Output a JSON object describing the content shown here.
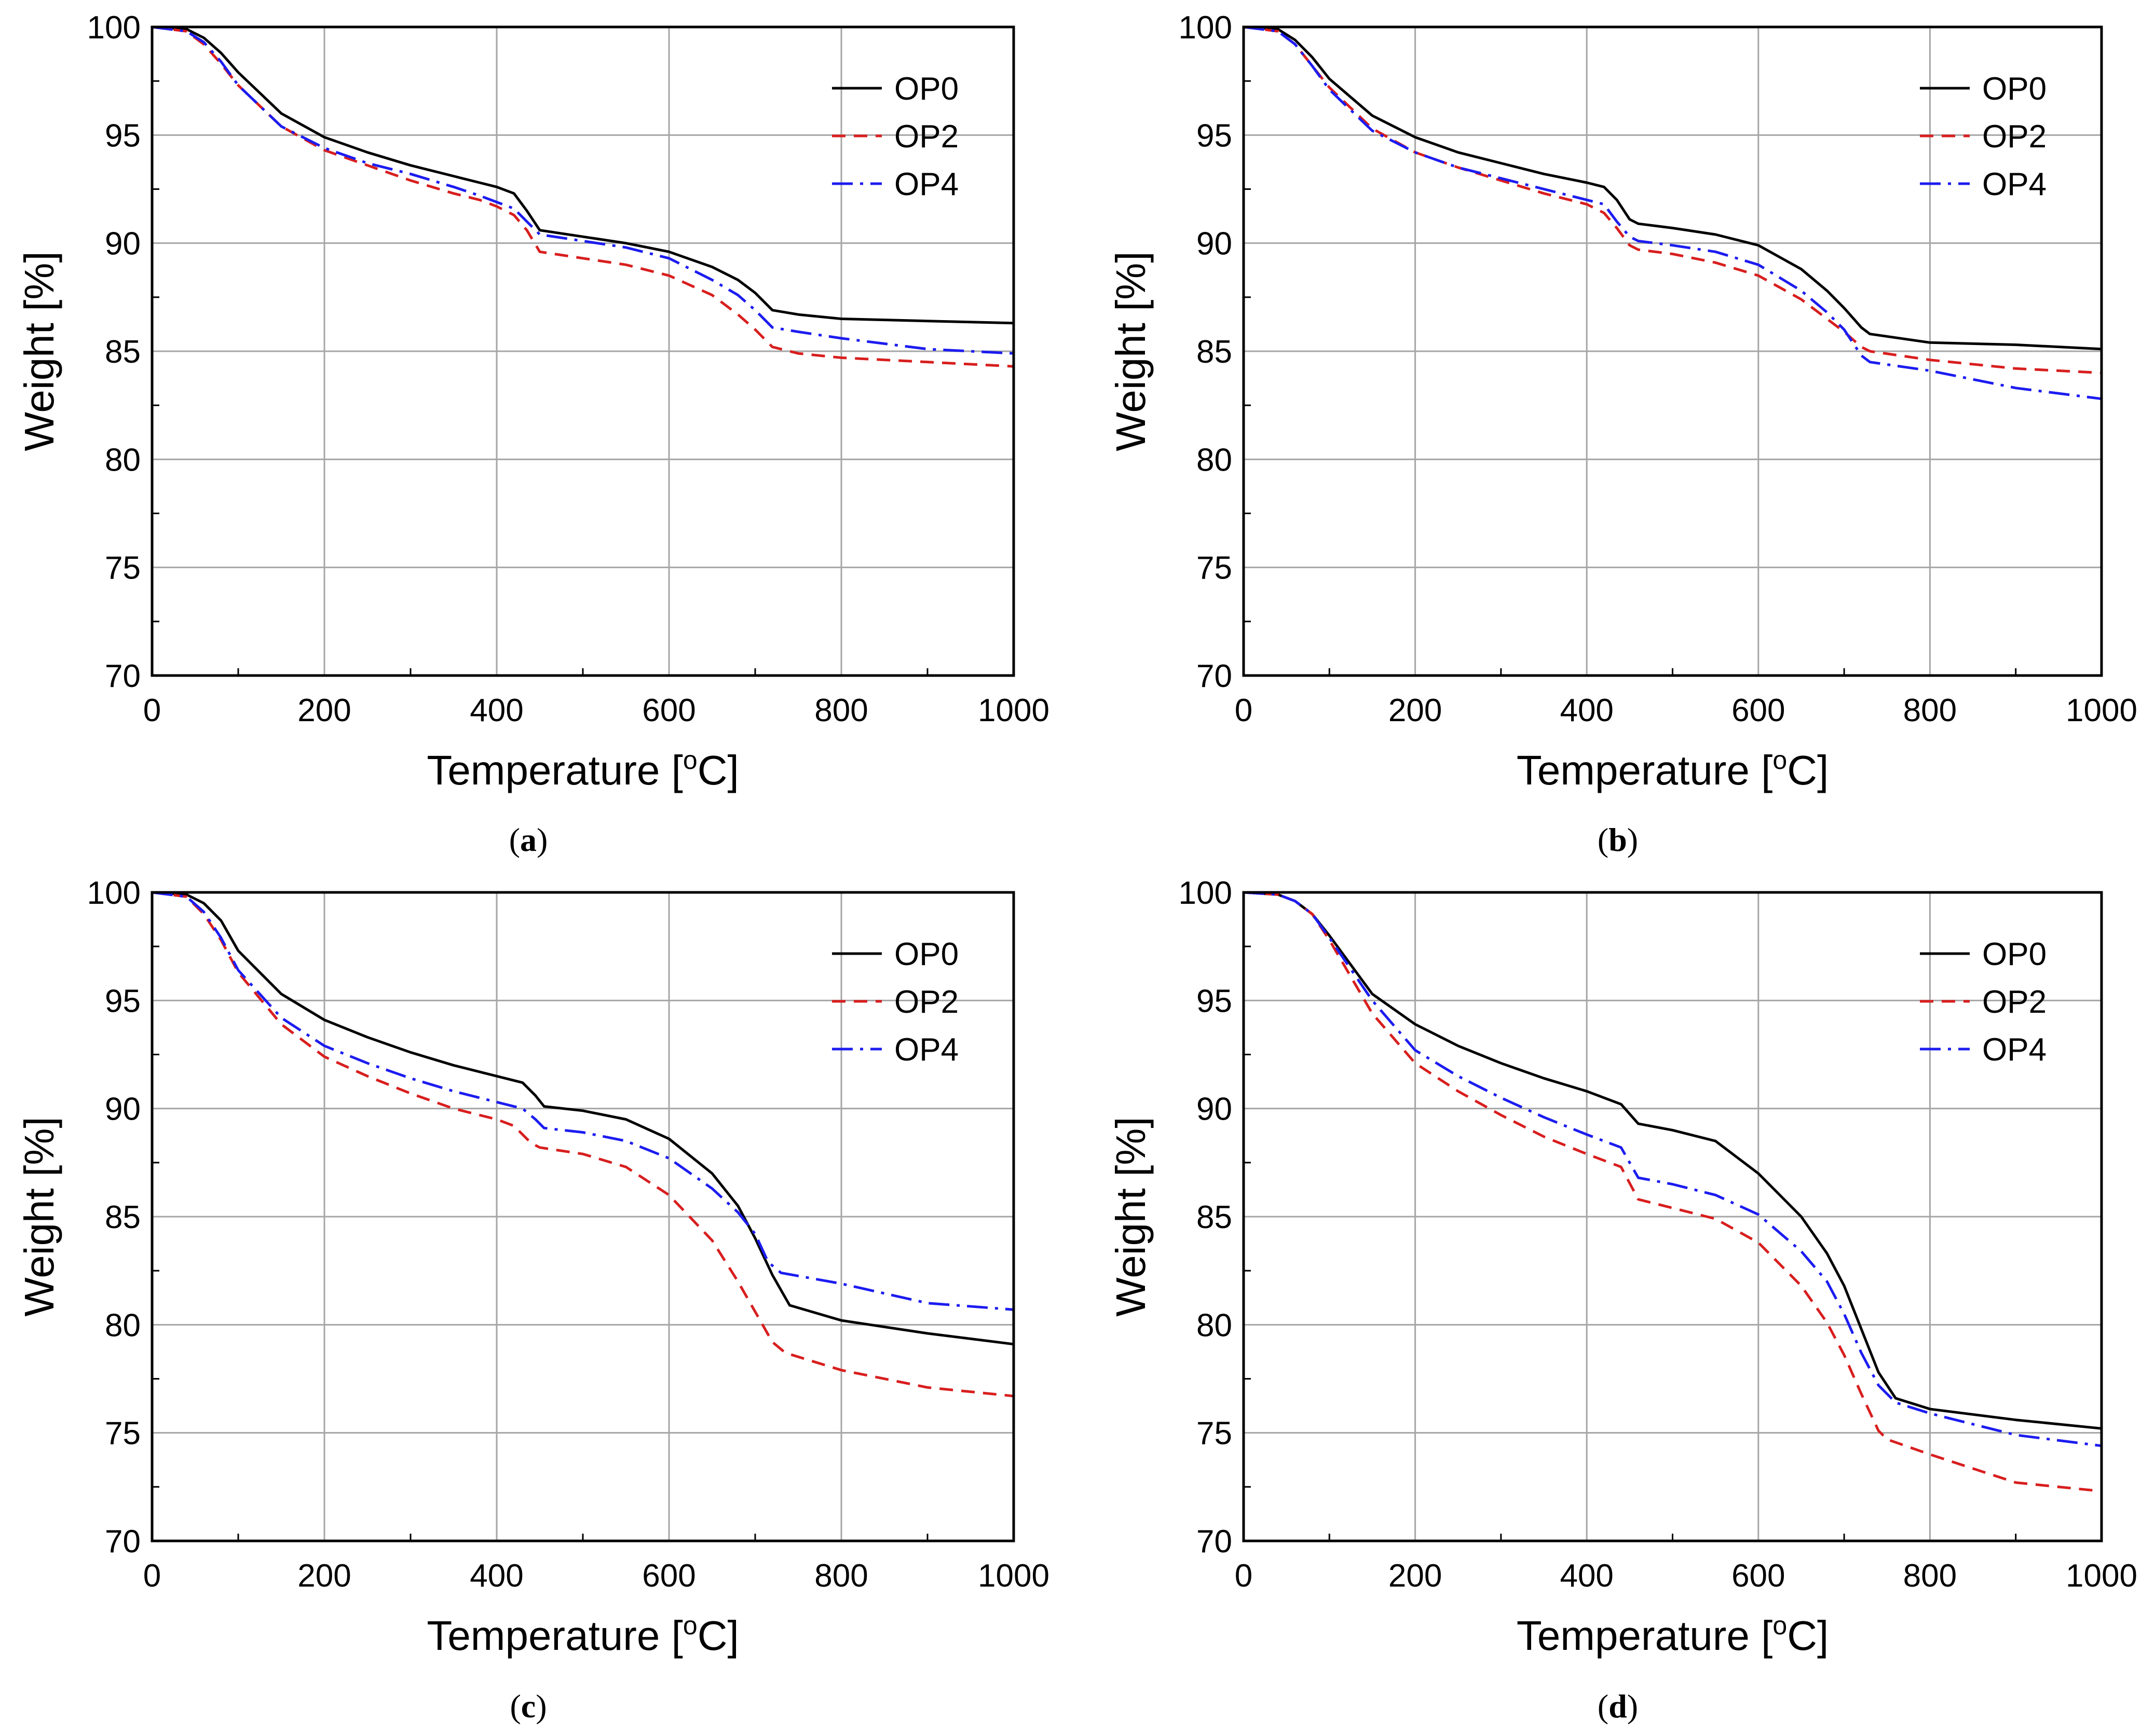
{
  "chart_data": [
    {
      "type": "line",
      "panel": "(a)",
      "caption_letter": "a",
      "xlabel_main": "Temperature [",
      "xlabel_sup": "o",
      "xlabel_tail": "C]",
      "ylabel": "Weight [%]",
      "xlim": [
        0,
        1000
      ],
      "ylim": [
        70,
        100
      ],
      "xticks": [
        0,
        200,
        400,
        600,
        800,
        1000
      ],
      "yticks": [
        70,
        75,
        80,
        85,
        90,
        95,
        100
      ],
      "grid": true,
      "legend_position": "top-right",
      "series": [
        {
          "name": "OP0",
          "color": "#000000",
          "dash": "solid",
          "x": [
            0,
            40,
            60,
            80,
            100,
            150,
            200,
            250,
            300,
            350,
            380,
            400,
            420,
            435,
            450,
            500,
            550,
            600,
            650,
            680,
            700,
            720,
            750,
            800,
            900,
            1000
          ],
          "y": [
            100,
            99.9,
            99.5,
            98.8,
            97.9,
            96.0,
            94.9,
            94.2,
            93.6,
            93.1,
            92.8,
            92.6,
            92.3,
            91.5,
            90.6,
            90.3,
            90.0,
            89.6,
            88.9,
            88.3,
            87.7,
            86.9,
            86.7,
            86.5,
            86.4,
            86.3
          ]
        },
        {
          "name": "OP2",
          "color": "#d81e1e",
          "dash": "dashed",
          "x": [
            0,
            40,
            60,
            80,
            100,
            150,
            200,
            250,
            300,
            350,
            380,
            400,
            420,
            435,
            450,
            500,
            550,
            600,
            650,
            680,
            700,
            720,
            750,
            800,
            900,
            1000
          ],
          "y": [
            100,
            99.8,
            99.2,
            98.3,
            97.3,
            95.4,
            94.3,
            93.6,
            92.9,
            92.3,
            92.0,
            91.7,
            91.3,
            90.6,
            89.6,
            89.3,
            89.0,
            88.5,
            87.6,
            86.7,
            86.0,
            85.2,
            84.9,
            84.7,
            84.5,
            84.3
          ]
        },
        {
          "name": "OP4",
          "color": "#1c1cf0",
          "dash": "dashdot",
          "x": [
            0,
            40,
            60,
            80,
            100,
            150,
            200,
            250,
            300,
            350,
            380,
            400,
            420,
            435,
            450,
            500,
            550,
            600,
            650,
            680,
            700,
            720,
            750,
            800,
            900,
            1000
          ],
          "y": [
            100,
            99.8,
            99.3,
            98.4,
            97.3,
            95.4,
            94.4,
            93.7,
            93.2,
            92.6,
            92.2,
            91.9,
            91.6,
            91.0,
            90.4,
            90.1,
            89.8,
            89.3,
            88.3,
            87.6,
            86.9,
            86.1,
            85.9,
            85.6,
            85.1,
            84.9
          ]
        }
      ],
      "legend_labels": [
        "OP0",
        "OP2",
        "OP4"
      ]
    },
    {
      "type": "line",
      "panel": "(b)",
      "caption_letter": "b",
      "xlabel_main": "Temperature [",
      "xlabel_sup": "o",
      "xlabel_tail": "C]",
      "ylabel": "Weight [%]",
      "xlim": [
        0,
        1000
      ],
      "ylim": [
        70,
        100
      ],
      "xticks": [
        0,
        200,
        400,
        600,
        800,
        1000
      ],
      "yticks": [
        70,
        75,
        80,
        85,
        90,
        95,
        100
      ],
      "grid": true,
      "legend_position": "top-right",
      "series": [
        {
          "name": "OP0",
          "color": "#000000",
          "dash": "solid",
          "x": [
            0,
            40,
            60,
            80,
            100,
            150,
            200,
            250,
            300,
            350,
            400,
            420,
            435,
            450,
            460,
            500,
            550,
            600,
            650,
            680,
            700,
            720,
            730,
            800,
            900,
            1000
          ],
          "y": [
            100,
            99.9,
            99.4,
            98.6,
            97.6,
            95.9,
            94.9,
            94.2,
            93.7,
            93.2,
            92.8,
            92.6,
            92.0,
            91.1,
            90.9,
            90.7,
            90.4,
            89.9,
            88.8,
            87.8,
            87.0,
            86.1,
            85.8,
            85.4,
            85.3,
            85.1
          ]
        },
        {
          "name": "OP2",
          "color": "#d81e1e",
          "dash": "dashed",
          "x": [
            0,
            40,
            60,
            80,
            100,
            150,
            200,
            250,
            300,
            350,
            400,
            420,
            435,
            450,
            460,
            500,
            550,
            600,
            650,
            680,
            700,
            720,
            730,
            800,
            900,
            1000
          ],
          "y": [
            100,
            99.8,
            99.2,
            98.2,
            97.2,
            95.3,
            94.2,
            93.5,
            92.9,
            92.3,
            91.8,
            91.4,
            90.7,
            89.9,
            89.7,
            89.5,
            89.1,
            88.5,
            87.4,
            86.5,
            85.9,
            85.2,
            85.0,
            84.6,
            84.2,
            84.0
          ]
        },
        {
          "name": "OP4",
          "color": "#1c1cf0",
          "dash": "dashdot",
          "x": [
            0,
            40,
            60,
            80,
            100,
            150,
            200,
            250,
            300,
            350,
            400,
            420,
            435,
            450,
            460,
            500,
            550,
            600,
            650,
            680,
            700,
            720,
            730,
            800,
            900,
            1000
          ],
          "y": [
            100,
            99.8,
            99.2,
            98.2,
            97.1,
            95.2,
            94.2,
            93.5,
            93.0,
            92.5,
            92.0,
            91.8,
            91.0,
            90.3,
            90.1,
            89.9,
            89.6,
            89.0,
            87.8,
            86.8,
            86.0,
            84.8,
            84.5,
            84.1,
            83.3,
            82.8
          ]
        }
      ],
      "legend_labels": [
        "OP0",
        "OP2",
        "OP4"
      ]
    },
    {
      "type": "line",
      "panel": "(c)",
      "caption_letter": "c",
      "xlabel_main": "Temperature [",
      "xlabel_sup": "o",
      "xlabel_tail": "C]",
      "ylabel": "Weight [%]",
      "xlim": [
        0,
        1000
      ],
      "ylim": [
        70,
        100
      ],
      "xticks": [
        0,
        200,
        400,
        600,
        800,
        1000
      ],
      "yticks": [
        70,
        75,
        80,
        85,
        90,
        95,
        100
      ],
      "grid": true,
      "legend_position": "top-right",
      "series": [
        {
          "name": "OP0",
          "color": "#000000",
          "dash": "solid",
          "x": [
            0,
            40,
            60,
            80,
            100,
            150,
            200,
            250,
            300,
            350,
            400,
            430,
            445,
            455,
            500,
            550,
            600,
            650,
            680,
            700,
            720,
            740,
            800,
            900,
            1000
          ],
          "y": [
            100,
            99.9,
            99.5,
            98.7,
            97.3,
            95.3,
            94.1,
            93.3,
            92.6,
            92.0,
            91.5,
            91.2,
            90.6,
            90.1,
            89.9,
            89.5,
            88.6,
            87.0,
            85.5,
            84.0,
            82.3,
            80.9,
            80.2,
            79.6,
            79.1
          ]
        },
        {
          "name": "OP2",
          "color": "#d81e1e",
          "dash": "dashed",
          "x": [
            0,
            40,
            60,
            80,
            100,
            150,
            200,
            250,
            300,
            350,
            400,
            420,
            440,
            450,
            500,
            550,
            600,
            650,
            680,
            700,
            720,
            735,
            800,
            900,
            1000
          ],
          "y": [
            100,
            99.8,
            99.0,
            97.8,
            96.3,
            93.9,
            92.4,
            91.5,
            90.7,
            90.0,
            89.5,
            89.2,
            88.4,
            88.2,
            87.9,
            87.3,
            86.0,
            83.9,
            82.0,
            80.6,
            79.2,
            78.7,
            77.9,
            77.1,
            76.7
          ]
        },
        {
          "name": "OP4",
          "color": "#1c1cf0",
          "dash": "dashdot",
          "x": [
            0,
            40,
            60,
            80,
            100,
            150,
            200,
            250,
            300,
            350,
            400,
            430,
            445,
            455,
            500,
            550,
            600,
            650,
            680,
            700,
            715,
            730,
            800,
            900,
            1000
          ],
          "y": [
            100,
            99.8,
            99.1,
            97.9,
            96.4,
            94.2,
            92.9,
            92.1,
            91.4,
            90.8,
            90.3,
            90.0,
            89.5,
            89.1,
            88.9,
            88.5,
            87.7,
            86.3,
            85.2,
            84.2,
            82.9,
            82.4,
            81.9,
            81.0,
            80.7
          ]
        }
      ],
      "legend_labels": [
        "OP0",
        "OP2",
        "OP4"
      ]
    },
    {
      "type": "line",
      "panel": "(d)",
      "caption_letter": "d",
      "xlabel_main": "Temperature [",
      "xlabel_sup": "o",
      "xlabel_tail": "C]",
      "ylabel": "Weight [%]",
      "xlim": [
        0,
        1000
      ],
      "ylim": [
        70,
        100
      ],
      "xticks": [
        0,
        200,
        400,
        600,
        800,
        1000
      ],
      "yticks": [
        70,
        75,
        80,
        85,
        90,
        95,
        100
      ],
      "grid": true,
      "legend_position": "top-right",
      "series": [
        {
          "name": "OP0",
          "color": "#000000",
          "dash": "solid",
          "x": [
            0,
            40,
            60,
            80,
            100,
            150,
            200,
            250,
            300,
            350,
            400,
            440,
            460,
            500,
            550,
            600,
            650,
            680,
            700,
            720,
            740,
            760,
            800,
            900,
            1000
          ],
          "y": [
            100,
            99.9,
            99.6,
            99.0,
            98.0,
            95.3,
            93.9,
            92.9,
            92.1,
            91.4,
            90.8,
            90.2,
            89.3,
            89.0,
            88.5,
            87.0,
            85.0,
            83.3,
            81.8,
            79.8,
            77.8,
            76.6,
            76.1,
            75.6,
            75.2
          ]
        },
        {
          "name": "OP2",
          "color": "#d81e1e",
          "dash": "dashed",
          "x": [
            0,
            40,
            60,
            80,
            100,
            150,
            200,
            250,
            300,
            350,
            400,
            440,
            460,
            500,
            550,
            600,
            650,
            680,
            700,
            720,
            740,
            750,
            800,
            900,
            1000
          ],
          "y": [
            100,
            99.9,
            99.6,
            99.0,
            97.8,
            94.4,
            92.1,
            90.8,
            89.7,
            88.7,
            87.9,
            87.3,
            85.8,
            85.4,
            84.9,
            83.8,
            81.8,
            80.1,
            78.6,
            76.8,
            75.1,
            74.7,
            74.0,
            72.7,
            72.3
          ]
        },
        {
          "name": "OP4",
          "color": "#1c1cf0",
          "dash": "dashdot",
          "x": [
            0,
            40,
            60,
            80,
            100,
            150,
            200,
            250,
            300,
            350,
            400,
            440,
            460,
            500,
            550,
            600,
            650,
            680,
            700,
            720,
            740,
            760,
            800,
            900,
            1000
          ],
          "y": [
            100,
            99.9,
            99.6,
            99.0,
            97.9,
            95.0,
            92.7,
            91.5,
            90.5,
            89.6,
            88.8,
            88.2,
            86.8,
            86.5,
            86.0,
            85.1,
            83.4,
            82.0,
            80.5,
            78.7,
            77.2,
            76.4,
            75.9,
            74.9,
            74.4
          ]
        }
      ],
      "legend_labels": [
        "OP0",
        "OP2",
        "OP4"
      ]
    }
  ]
}
